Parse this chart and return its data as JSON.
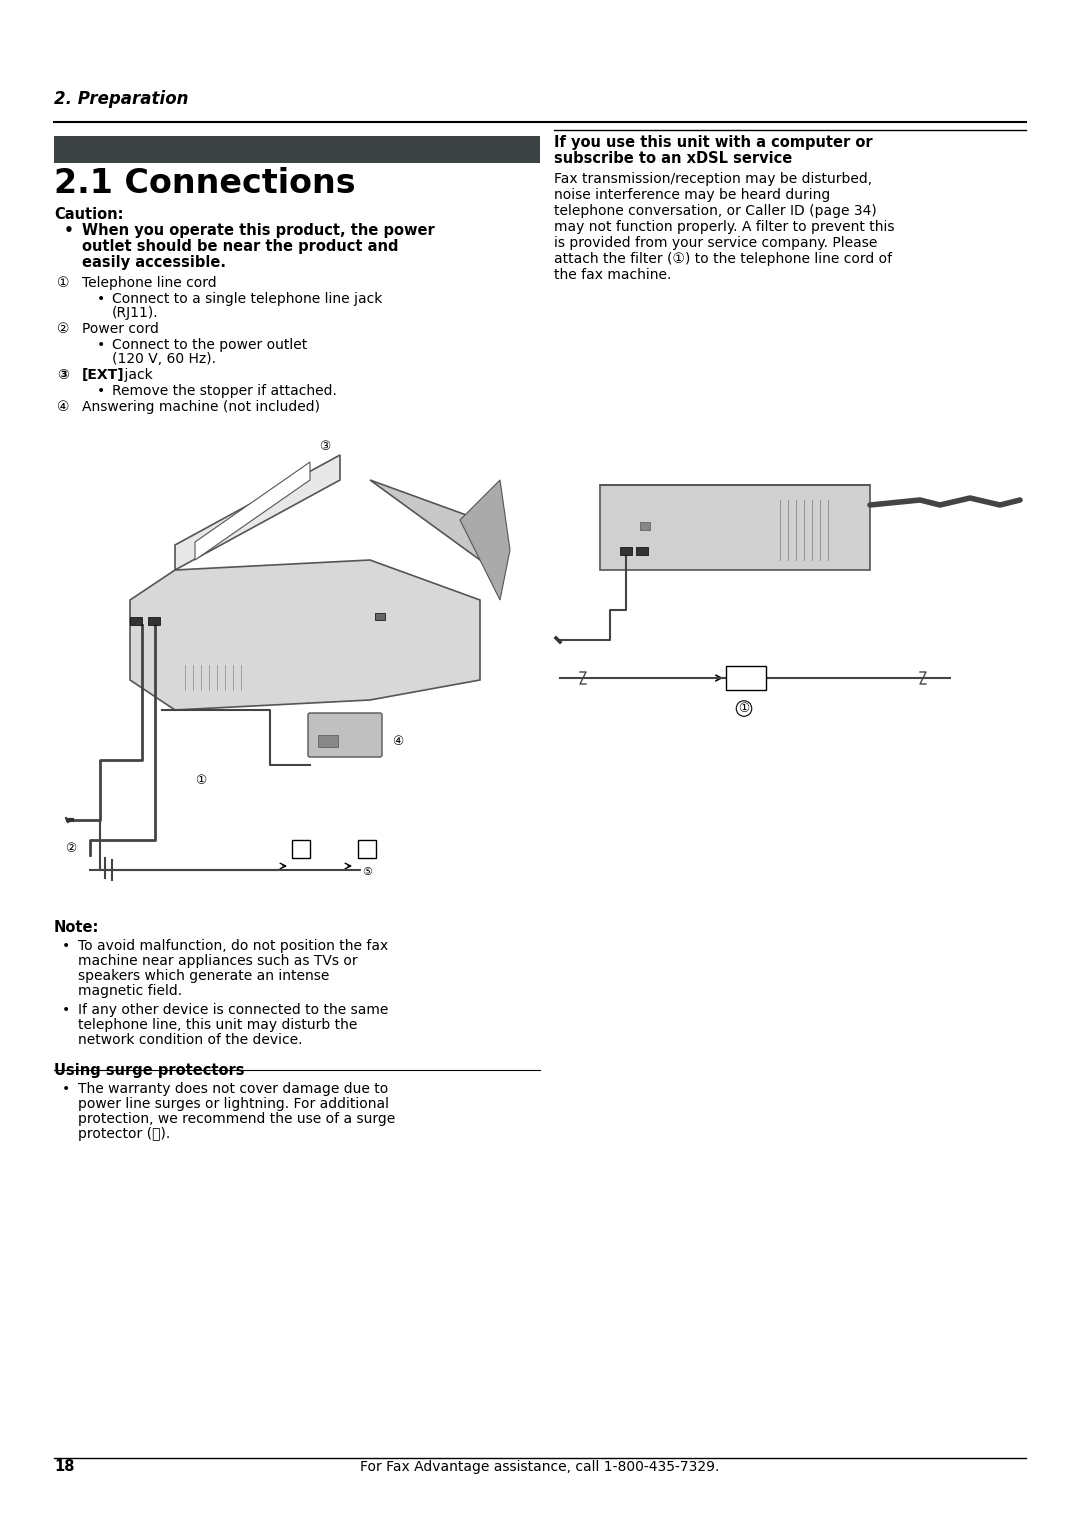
{
  "bg_color": "#ffffff",
  "page_width": 10.8,
  "page_height": 15.28,
  "dark_bar_color": "#3d4245",
  "header_text": "2. Preparation",
  "section_title": "2.1 Connections",
  "caution_label": "Caution:",
  "caution_line1": "When you operate this product, the power",
  "caution_line2": "outlet should be near the product and",
  "caution_line3": "easily accessible.",
  "item1_num": "①",
  "item1_label": "Telephone line cord",
  "item1_sub1": "Connect to a single telephone line jack",
  "item1_sub2": "(RJ11).",
  "item2_num": "②",
  "item2_label": "Power cord",
  "item2_sub1": "Connect to the power outlet",
  "item2_sub2": "(120 V, 60 Hz).",
  "item3_num": "③",
  "item3_label_bold": "[EXT]",
  "item3_label_normal": " jack",
  "item3_sub1": "Remove the stopper if attached.",
  "item4_num": "④",
  "item4_label": "Answering machine (not included)",
  "right_title_line1": "If you use this unit with a computer or",
  "right_title_line2": "subscribe to an xDSL service",
  "right_body_lines": [
    "Fax transmission/reception may be disturbed,",
    "noise interference may be heard during",
    "telephone conversation, or Caller ID (page 34)",
    "may not function properly. A filter to prevent this",
    "is provided from your service company. Please",
    "attach the filter (①) to the telephone line cord of",
    "the fax machine."
  ],
  "note_label": "Note:",
  "note1_lines": [
    "To avoid malfunction, do not position the fax",
    "machine near appliances such as TVs or",
    "speakers which generate an intense",
    "magnetic field."
  ],
  "note2_lines": [
    "If any other device is connected to the same",
    "telephone line, this unit may disturb the",
    "network condition of the device."
  ],
  "surge_title": "Using surge protectors",
  "surge_lines": [
    "The warranty does not cover damage due to",
    "power line surges or lightning. For additional",
    "protection, we recommend the use of a surge",
    "protector (ⓤ)."
  ],
  "footer_page": "18",
  "footer_text": "For Fax Advantage assistance, call 1-800-435-7329."
}
